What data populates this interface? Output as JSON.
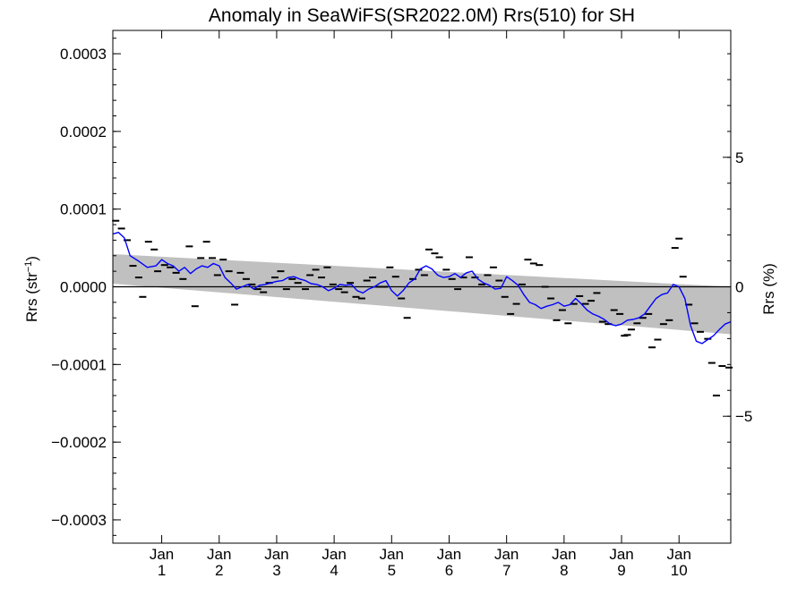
{
  "chart_data": {
    "type": "line",
    "title": "Anomaly in SeaWiFS(SR2022.0M) Rrs(510) for SH",
    "ylabel": "Rrs (str",
    "ylabel_sup": "−1",
    "ylabel_close": ")",
    "y2label": "Rrs (%)",
    "ylim": [
      -0.00033,
      0.00033
    ],
    "y2lim": [
      -9.9,
      9.9
    ],
    "yticks": [
      {
        "value": 0.0003,
        "label": "0.0003"
      },
      {
        "value": 0.0002,
        "label": "0.0002"
      },
      {
        "value": 0.0001,
        "label": "0.0001"
      },
      {
        "value": 0.0,
        "label": "0.0000"
      },
      {
        "value": -0.0001,
        "label": "−0.0001"
      },
      {
        "value": -0.0002,
        "label": "−0.0002"
      },
      {
        "value": -0.0003,
        "label": "−0.0003"
      }
    ],
    "y2ticks": [
      {
        "value": 5,
        "label": "5"
      },
      {
        "value": 0,
        "label": "0"
      },
      {
        "value": -5,
        "label": "−5"
      }
    ],
    "xlim": [
      1997.7,
      2008.45
    ],
    "xticks": [
      {
        "value": 1998.55,
        "label1": "Jan",
        "label2": "1"
      },
      {
        "value": 1999.55,
        "label1": "Jan",
        "label2": "2"
      },
      {
        "value": 2000.55,
        "label1": "Jan",
        "label2": "3"
      },
      {
        "value": 2001.55,
        "label1": "Jan",
        "label2": "4"
      },
      {
        "value": 2002.55,
        "label1": "Jan",
        "label2": "5"
      },
      {
        "value": 2003.55,
        "label1": "Jan",
        "label2": "6"
      },
      {
        "value": 2004.55,
        "label1": "Jan",
        "label2": "7"
      },
      {
        "value": 2005.55,
        "label1": "Jan",
        "label2": "8"
      },
      {
        "value": 2006.55,
        "label1": "Jan",
        "label2": "9"
      },
      {
        "value": 2007.55,
        "label1": "Jan",
        "label2": "10"
      }
    ],
    "zero_line": 0.0,
    "confidence_band": {
      "color": "#c0c0c0",
      "upper": [
        [
          1997.7,
          4.2e-05
        ],
        [
          2008.45,
          0.0
        ]
      ],
      "lower": [
        [
          1997.7,
          4e-06
        ],
        [
          2008.45,
          -6.1e-05
        ]
      ]
    },
    "series": [
      {
        "kind": "monthly_markers",
        "color": "#000000",
        "points": [
          [
            1997.75,
            8.5e-05
          ],
          [
            1997.85,
            7.5e-05
          ],
          [
            1997.95,
            6e-05
          ],
          [
            1998.05,
            2.7e-05
          ],
          [
            1998.15,
            1.2e-05
          ],
          [
            1998.22,
            -1.3e-05
          ],
          [
            1998.32,
            5.8e-05
          ],
          [
            1998.42,
            4.8e-05
          ],
          [
            1998.48,
            2e-05
          ],
          [
            1998.6,
            2.8e-05
          ],
          [
            1998.7,
            2.5e-05
          ],
          [
            1998.8,
            1.8e-05
          ],
          [
            1998.92,
            1e-05
          ],
          [
            1999.03,
            5.2e-05
          ],
          [
            1999.13,
            -2.5e-05
          ],
          [
            1999.23,
            3.7e-05
          ],
          [
            1999.33,
            5.8e-05
          ],
          [
            1999.43,
            3.7e-05
          ],
          [
            1999.52,
            1.5e-05
          ],
          [
            1999.62,
            3.5e-05
          ],
          [
            1999.72,
            2e-05
          ],
          [
            1999.82,
            -2.3e-05
          ],
          [
            1999.92,
            1.8e-05
          ],
          [
            2000.02,
            1e-05
          ],
          [
            2000.12,
            3e-06
          ],
          [
            2000.22,
            -3e-06
          ],
          [
            2000.32,
            -7e-06
          ],
          [
            2000.42,
            5e-06
          ],
          [
            2000.52,
            1.2e-05
          ],
          [
            2000.62,
            2e-05
          ],
          [
            2000.72,
            -3e-06
          ],
          [
            2000.82,
            1e-05
          ],
          [
            2000.92,
            5e-06
          ],
          [
            2001.05,
            -3e-06
          ],
          [
            2001.13,
            1.5e-05
          ],
          [
            2001.23,
            2.2e-05
          ],
          [
            2001.33,
            1.2e-05
          ],
          [
            2001.43,
            2.5e-05
          ],
          [
            2001.53,
            3e-06
          ],
          [
            2001.63,
            -3e-06
          ],
          [
            2001.73,
            -7e-06
          ],
          [
            2001.83,
            5e-06
          ],
          [
            2001.93,
            -1.3e-05
          ],
          [
            2002.03,
            -1.5e-05
          ],
          [
            2002.12,
            8e-06
          ],
          [
            2002.22,
            1.2e-05
          ],
          [
            2002.32,
            0.0
          ],
          [
            2002.42,
            0.0
          ],
          [
            2002.52,
            2.5e-05
          ],
          [
            2002.62,
            1.3e-05
          ],
          [
            2002.72,
            -1.5e-05
          ],
          [
            2002.82,
            -4e-05
          ],
          [
            2002.92,
            1e-05
          ],
          [
            2003.02,
            2.2e-05
          ],
          [
            2003.12,
            1.5e-05
          ],
          [
            2003.2,
            4.8e-05
          ],
          [
            2003.3,
            4.3e-05
          ],
          [
            2003.38,
            3.8e-05
          ],
          [
            2003.5,
            2.2e-05
          ],
          [
            2003.6,
            1e-05
          ],
          [
            2003.7,
            -3e-06
          ],
          [
            2003.8,
            1.2e-05
          ],
          [
            2003.9,
            3.8e-05
          ],
          [
            2004.0,
            1.2e-05
          ],
          [
            2004.12,
            3e-06
          ],
          [
            2004.22,
            1.5e-05
          ],
          [
            2004.32,
            2.5e-05
          ],
          [
            2004.42,
            8e-06
          ],
          [
            2004.52,
            -1.3e-05
          ],
          [
            2004.62,
            -3.5e-05
          ],
          [
            2004.72,
            -2.2e-05
          ],
          [
            2004.82,
            3e-06
          ],
          [
            2004.92,
            3.5e-05
          ],
          [
            2005.02,
            3e-05
          ],
          [
            2005.12,
            2.8e-05
          ],
          [
            2005.22,
            0.0
          ],
          [
            2005.32,
            -1.5e-05
          ],
          [
            2005.42,
            -4.3e-05
          ],
          [
            2005.52,
            -3e-05
          ],
          [
            2005.62,
            -4.7e-05
          ],
          [
            2005.72,
            -2.2e-05
          ],
          [
            2005.82,
            -1.2e-05
          ],
          [
            2005.92,
            -2.2e-05
          ],
          [
            2006.02,
            -1.8e-05
          ],
          [
            2006.12,
            -8e-06
          ],
          [
            2006.22,
            -4.5e-05
          ],
          [
            2006.32,
            -4.8e-05
          ],
          [
            2006.42,
            -3e-05
          ],
          [
            2006.52,
            -3.5e-05
          ],
          [
            2006.6,
            -6.3e-05
          ],
          [
            2006.65,
            -6.2e-05
          ],
          [
            2006.72,
            -5.5e-05
          ],
          [
            2006.82,
            -4.7e-05
          ],
          [
            2006.92,
            -4e-05
          ],
          [
            2007.02,
            -3.5e-05
          ],
          [
            2007.08,
            -7.8e-05
          ],
          [
            2007.18,
            -6.8e-05
          ],
          [
            2007.28,
            -4.8e-05
          ],
          [
            2007.38,
            -4.3e-05
          ],
          [
            2007.48,
            5e-05
          ],
          [
            2007.55,
            6.2e-05
          ],
          [
            2007.62,
            1.3e-05
          ],
          [
            2007.72,
            -2.3e-05
          ],
          [
            2007.82,
            -4.7e-05
          ],
          [
            2007.92,
            -5.8e-05
          ],
          [
            2008.05,
            -6.7e-05
          ],
          [
            2008.12,
            -9.8e-05
          ],
          [
            2008.2,
            -0.00014
          ],
          [
            2008.3,
            -0.000102
          ],
          [
            2008.42,
            -0.000104
          ]
        ]
      },
      {
        "kind": "smoothed_line",
        "color": "#0000ff",
        "points": [
          [
            1997.7,
            6.8e-05
          ],
          [
            1997.8,
            7e-05
          ],
          [
            1997.9,
            6.3e-05
          ],
          [
            1998.0,
            4e-05
          ],
          [
            1998.15,
            3.3e-05
          ],
          [
            1998.3,
            2.5e-05
          ],
          [
            1998.45,
            2.7e-05
          ],
          [
            1998.55,
            3.5e-05
          ],
          [
            1998.65,
            3e-05
          ],
          [
            1998.75,
            2.7e-05
          ],
          [
            1998.85,
            2e-05
          ],
          [
            1998.95,
            2.5e-05
          ],
          [
            1999.05,
            1.7e-05
          ],
          [
            1999.15,
            2.3e-05
          ],
          [
            1999.25,
            2.7e-05
          ],
          [
            1999.35,
            2.5e-05
          ],
          [
            1999.45,
            3e-05
          ],
          [
            1999.55,
            2.7e-05
          ],
          [
            1999.65,
            1.2e-05
          ],
          [
            1999.75,
            5e-06
          ],
          [
            1999.85,
            -3e-06
          ],
          [
            1999.95,
            0.0
          ],
          [
            2000.05,
            3e-06
          ],
          [
            2000.15,
            -3e-06
          ],
          [
            2000.25,
            2e-06
          ],
          [
            2000.35,
            3e-06
          ],
          [
            2000.45,
            5e-06
          ],
          [
            2000.55,
            7e-06
          ],
          [
            2000.65,
            8e-06
          ],
          [
            2000.75,
            1.2e-05
          ],
          [
            2000.85,
            1.3e-05
          ],
          [
            2000.95,
            1e-05
          ],
          [
            2001.05,
            8e-06
          ],
          [
            2001.15,
            4e-06
          ],
          [
            2001.25,
            3e-06
          ],
          [
            2001.35,
            0.0
          ],
          [
            2001.45,
            -5e-06
          ],
          [
            2001.55,
            -2e-06
          ],
          [
            2001.65,
            3e-06
          ],
          [
            2001.75,
            2e-06
          ],
          [
            2001.85,
            3e-06
          ],
          [
            2001.95,
            -5e-06
          ],
          [
            2002.05,
            -8e-06
          ],
          [
            2002.15,
            -3e-06
          ],
          [
            2002.25,
            0.0
          ],
          [
            2002.35,
            5e-06
          ],
          [
            2002.45,
            8e-06
          ],
          [
            2002.55,
            -5e-06
          ],
          [
            2002.65,
            -1.2e-05
          ],
          [
            2002.75,
            -5e-06
          ],
          [
            2002.85,
            5e-06
          ],
          [
            2002.95,
            1e-05
          ],
          [
            2003.05,
            2.3e-05
          ],
          [
            2003.15,
            2.7e-05
          ],
          [
            2003.25,
            2.3e-05
          ],
          [
            2003.35,
            1.5e-05
          ],
          [
            2003.45,
            1.2e-05
          ],
          [
            2003.55,
            1.3e-05
          ],
          [
            2003.65,
            1.7e-05
          ],
          [
            2003.75,
            1.2e-05
          ],
          [
            2003.85,
            1.8e-05
          ],
          [
            2003.95,
            2e-05
          ],
          [
            2004.05,
            1e-05
          ],
          [
            2004.15,
            5e-06
          ],
          [
            2004.25,
            2e-06
          ],
          [
            2004.35,
            -3e-06
          ],
          [
            2004.45,
            -2e-06
          ],
          [
            2004.55,
            1.3e-05
          ],
          [
            2004.65,
            8e-06
          ],
          [
            2004.75,
            2e-06
          ],
          [
            2004.85,
            -1e-05
          ],
          [
            2004.95,
            -2e-05
          ],
          [
            2005.05,
            -2.3e-05
          ],
          [
            2005.15,
            -2.8e-05
          ],
          [
            2005.25,
            -2.5e-05
          ],
          [
            2005.35,
            -2.3e-05
          ],
          [
            2005.45,
            -2e-05
          ],
          [
            2005.55,
            -2.5e-05
          ],
          [
            2005.65,
            -2.3e-05
          ],
          [
            2005.75,
            -1.5e-05
          ],
          [
            2005.85,
            -2.2e-05
          ],
          [
            2005.95,
            -3e-05
          ],
          [
            2006.05,
            -3.5e-05
          ],
          [
            2006.15,
            -3.8e-05
          ],
          [
            2006.25,
            -4.2e-05
          ],
          [
            2006.35,
            -4.8e-05
          ],
          [
            2006.45,
            -5e-05
          ],
          [
            2006.55,
            -4.8e-05
          ],
          [
            2006.65,
            -4.3e-05
          ],
          [
            2006.75,
            -4.2e-05
          ],
          [
            2006.85,
            -4e-05
          ],
          [
            2006.95,
            -3.5e-05
          ],
          [
            2007.05,
            -2.5e-05
          ],
          [
            2007.15,
            -1.5e-05
          ],
          [
            2007.25,
            -1e-05
          ],
          [
            2007.35,
            -8e-06
          ],
          [
            2007.45,
            3e-06
          ],
          [
            2007.55,
            0.0
          ],
          [
            2007.65,
            -1.5e-05
          ],
          [
            2007.75,
            -5e-05
          ],
          [
            2007.85,
            -7e-05
          ],
          [
            2007.95,
            -7.3e-05
          ],
          [
            2008.05,
            -6.8e-05
          ],
          [
            2008.15,
            -6.3e-05
          ],
          [
            2008.25,
            -5.5e-05
          ],
          [
            2008.35,
            -4.8e-05
          ],
          [
            2008.45,
            -4.5e-05
          ]
        ]
      }
    ]
  }
}
